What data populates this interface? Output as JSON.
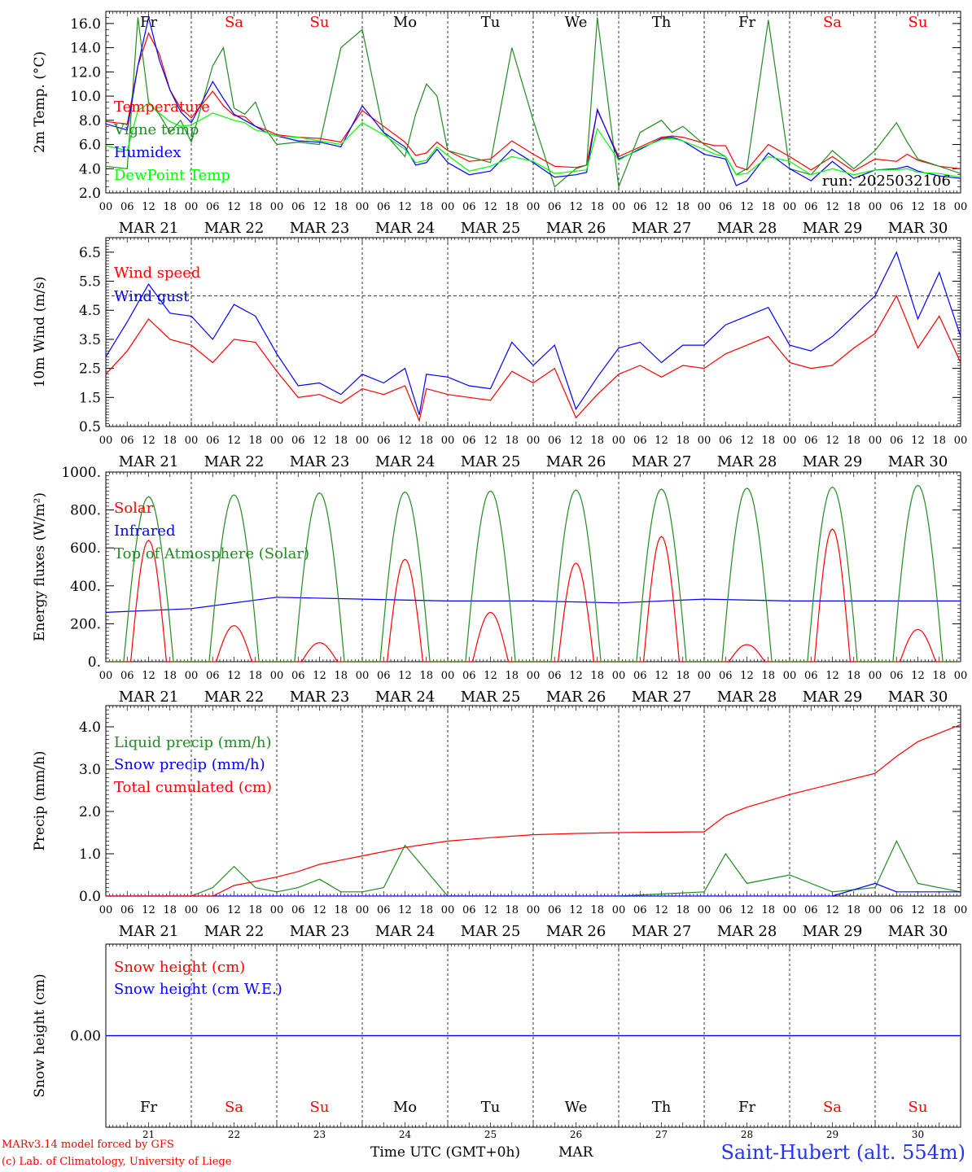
{
  "days": {
    "abbr": [
      "Fr",
      "Sa",
      "Su",
      "Mo",
      "Tu",
      "We",
      "Th",
      "Fr",
      "Sa",
      "Su"
    ],
    "weekend": [
      false,
      true,
      true,
      false,
      false,
      false,
      false,
      false,
      true,
      true
    ],
    "dates": [
      "MAR 21",
      "MAR 22",
      "MAR 23",
      "MAR 24",
      "MAR 25",
      "MAR 26",
      "MAR 27",
      "MAR 28",
      "MAR 29",
      "MAR 30"
    ],
    "day_numbers": [
      "21",
      "22",
      "23",
      "24",
      "25",
      "26",
      "27",
      "28",
      "29",
      "30"
    ],
    "hour_ticks": [
      "00",
      "06",
      "12",
      "18"
    ],
    "end_tick": "00"
  },
  "colors": {
    "red": "#ff0000",
    "green": "#228B22",
    "blue": "#0000ff",
    "lightgreen": "#00ff00",
    "weekend": "#ff0000"
  },
  "footer": {
    "model": "MARv3.14 model forced by GFS",
    "lab": "(c) Lab. of Climatology, University of Liege",
    "xlabel": "Time UTC (GMT+0h)",
    "month": "MAR",
    "station": "Saint-Hubert (alt. 554m)"
  },
  "chart_data": [
    {
      "type": "line",
      "ylabel": "2m Temp. (°C)",
      "ylim": [
        2,
        17
      ],
      "yticks": [
        "2.0",
        "4.0",
        "6.0",
        "8.0",
        "10.0",
        "12.0",
        "14.0",
        "16.0"
      ],
      "run_label": "run: 2025032106",
      "x_hours": [
        0,
        6,
        9,
        12,
        15,
        18,
        21,
        24,
        30,
        33,
        36,
        39,
        42,
        45,
        48,
        54,
        60,
        66,
        72,
        78,
        84,
        87,
        90,
        93,
        96,
        102,
        108,
        114,
        120,
        126,
        132,
        135,
        138,
        144,
        150,
        156,
        159,
        162,
        168,
        171,
        174,
        177,
        180,
        186,
        192,
        198,
        204,
        210,
        216,
        222,
        225,
        228,
        234,
        240
      ],
      "series": [
        {
          "name": "Temperature",
          "color": "red",
          "values": [
            7.9,
            7.7,
            12.5,
            15.2,
            13.5,
            10.5,
            9.0,
            8.2,
            10.4,
            9.2,
            8.4,
            8.3,
            7.5,
            7.2,
            6.8,
            6.6,
            6.5,
            6.2,
            8.8,
            7.5,
            6.2,
            5.1,
            5.3,
            6.2,
            5.5,
            4.6,
            4.8,
            6.3,
            5.2,
            4.2,
            4.1,
            4.3,
            8.8,
            5.0,
            5.8,
            6.6,
            6.7,
            6.6,
            6.1,
            5.9,
            5.9,
            4.2,
            3.9,
            6.0,
            5.0,
            3.9,
            5.0,
            3.8,
            4.8,
            4.6,
            5.2,
            4.7,
            4.2,
            4.0
          ]
        },
        {
          "name": "Vigne temp",
          "color": "green",
          "values": [
            4.2,
            4.0,
            16.5,
            9.5,
            8.5,
            7.0,
            8.0,
            6.2,
            12.5,
            14.0,
            9.0,
            8.5,
            9.5,
            7.2,
            6.0,
            6.2,
            6.0,
            14.0,
            15.5,
            7.0,
            5.0,
            8.5,
            11.0,
            10.0,
            5.5,
            5.0,
            4.5,
            14.0,
            8.0,
            2.5,
            4.0,
            4.3,
            16.5,
            2.5,
            7.0,
            8.0,
            7.0,
            7.5,
            6.0,
            5.5,
            5.0,
            3.5,
            4.0,
            16.3,
            4.0,
            3.5,
            5.5,
            4.0,
            5.5,
            7.8,
            6.2,
            4.8,
            4.2,
            3.6
          ]
        },
        {
          "name": "Humidex",
          "color": "blue",
          "values": [
            7.7,
            7.2,
            12.5,
            16.5,
            13.0,
            10.5,
            8.7,
            7.8,
            11.2,
            9.8,
            8.5,
            8.0,
            7.5,
            7.0,
            6.7,
            6.3,
            6.2,
            5.8,
            9.2,
            7.0,
            5.8,
            4.3,
            4.5,
            5.6,
            4.5,
            3.5,
            3.8,
            5.6,
            4.5,
            3.3,
            3.5,
            3.7,
            8.9,
            4.8,
            5.6,
            6.5,
            6.6,
            6.3,
            5.2,
            5.0,
            4.8,
            2.6,
            3.0,
            5.3,
            4.0,
            3.0,
            4.6,
            3.2,
            3.9,
            4.0,
            4.2,
            3.8,
            3.4,
            3.2
          ]
        },
        {
          "name": "DewPoint Temp",
          "color": "lightgreen",
          "values": [
            5.9,
            5.5,
            8.8,
            9.4,
            8.6,
            7.9,
            7.5,
            7.6,
            8.6,
            8.3,
            8.0,
            7.8,
            7.2,
            7.0,
            6.7,
            6.6,
            6.3,
            6.0,
            7.8,
            6.8,
            5.6,
            4.5,
            4.7,
            5.8,
            5.1,
            3.8,
            4.2,
            5.0,
            4.6,
            3.6,
            3.8,
            3.9,
            7.3,
            4.7,
            5.7,
            6.4,
            6.5,
            6.3,
            5.6,
            5.2,
            5.0,
            3.5,
            3.6,
            5.0,
            4.6,
            3.5,
            4.0,
            3.5,
            3.9,
            3.9,
            4.0,
            3.7,
            3.6,
            3.3
          ]
        }
      ]
    },
    {
      "type": "line",
      "ylabel": "10m Wind (m/s)",
      "ylim": [
        0.5,
        7
      ],
      "yticks": [
        "0.5",
        "1.5",
        "2.5",
        "3.5",
        "4.5",
        "5.5",
        "6.5"
      ],
      "reference_line": 5,
      "x_hours": [
        0,
        6,
        12,
        18,
        24,
        30,
        36,
        42,
        48,
        54,
        60,
        66,
        72,
        78,
        84,
        88,
        90,
        96,
        102,
        108,
        114,
        120,
        126,
        132,
        138,
        144,
        150,
        156,
        162,
        168,
        174,
        180,
        186,
        192,
        198,
        204,
        210,
        216,
        222,
        228,
        234,
        240
      ],
      "series": [
        {
          "name": "Wind speed",
          "color": "red",
          "values": [
            2.3,
            3.1,
            4.2,
            3.5,
            3.3,
            2.7,
            3.5,
            3.4,
            2.4,
            1.5,
            1.6,
            1.3,
            1.8,
            1.6,
            1.9,
            0.7,
            1.8,
            1.6,
            1.5,
            1.4,
            2.4,
            2.0,
            2.5,
            0.8,
            1.6,
            2.3,
            2.6,
            2.2,
            2.6,
            2.5,
            3.0,
            3.3,
            3.6,
            2.7,
            2.5,
            2.6,
            3.2,
            3.7,
            5.0,
            3.2,
            4.3,
            2.7
          ]
        },
        {
          "name": "Wind gust",
          "color": "blue",
          "values": [
            2.9,
            4.1,
            5.4,
            4.4,
            4.3,
            3.5,
            4.7,
            4.3,
            3.0,
            1.9,
            2.0,
            1.6,
            2.3,
            2.0,
            2.5,
            0.9,
            2.3,
            2.2,
            1.9,
            1.8,
            3.4,
            2.6,
            3.3,
            1.1,
            2.2,
            3.2,
            3.4,
            2.7,
            3.3,
            3.3,
            4.0,
            4.3,
            4.6,
            3.3,
            3.1,
            3.6,
            4.3,
            5.0,
            6.5,
            4.2,
            5.8,
            3.6
          ]
        }
      ]
    },
    {
      "type": "line",
      "ylabel": "Energy fluxes (W/m²)",
      "ylim": [
        0,
        1000
      ],
      "yticks": [
        "0.",
        "200.",
        "400.",
        "600.",
        "800.",
        "1000."
      ],
      "series": [
        {
          "name": "Solar",
          "color": "red",
          "peaks": [
            640,
            190,
            100,
            540,
            260,
            520,
            660,
            90,
            700,
            170
          ]
        },
        {
          "name": "Infrared",
          "color": "blue",
          "baseline": [
            260,
            280,
            340,
            330,
            320,
            320,
            310,
            330,
            320,
            320
          ]
        },
        {
          "name": "Top of Atmosphere (Solar)",
          "color": "green",
          "peaks": [
            870,
            880,
            890,
            895,
            900,
            905,
            910,
            915,
            920,
            930
          ]
        }
      ]
    },
    {
      "type": "line",
      "ylabel": "Precip (mm/h)",
      "ylim": [
        0,
        4.5
      ],
      "yticks": [
        "0.0",
        "1.0",
        "2.0",
        "3.0",
        "4.0"
      ],
      "x_hours": [
        0,
        24,
        30,
        36,
        42,
        48,
        54,
        60,
        66,
        72,
        78,
        84,
        96,
        108,
        120,
        132,
        144,
        168,
        174,
        180,
        192,
        204,
        216,
        222,
        228,
        240
      ],
      "series": [
        {
          "name": "Liquid precip (mm/h)",
          "color": "green",
          "values": [
            0,
            0,
            0.2,
            0.7,
            0.2,
            0.1,
            0.2,
            0.4,
            0.1,
            0.1,
            0.2,
            1.2,
            0,
            0,
            0,
            0,
            0,
            0.1,
            1.0,
            0.3,
            0.5,
            0.1,
            0.2,
            1.3,
            0.3,
            0.1
          ]
        },
        {
          "name": "Snow precip (mm/h)",
          "color": "blue",
          "values": [
            0,
            0,
            0,
            0,
            0,
            0,
            0,
            0,
            0,
            0,
            0,
            0,
            0,
            0,
            0,
            0,
            0,
            0,
            0,
            0,
            0,
            0,
            0.3,
            0.1,
            0.1,
            0.1
          ]
        },
        {
          "name": "Total cumulated (cm)",
          "color": "red",
          "values": [
            0,
            0,
            0,
            0.25,
            0.35,
            0.45,
            0.58,
            0.75,
            0.85,
            0.95,
            1.05,
            1.15,
            1.3,
            1.38,
            1.45,
            1.48,
            1.5,
            1.52,
            1.9,
            2.1,
            2.4,
            2.65,
            2.9,
            3.3,
            3.65,
            4.05
          ]
        }
      ]
    },
    {
      "type": "line",
      "ylabel": "Snow height (cm)",
      "yticks": [
        "0.00"
      ],
      "series": [
        {
          "name": "Snow height (cm)",
          "color": "red",
          "values": [
            0,
            0
          ]
        },
        {
          "name": "Snow height (cm W.E.)",
          "color": "blue",
          "values": [
            0,
            0
          ]
        }
      ]
    }
  ]
}
